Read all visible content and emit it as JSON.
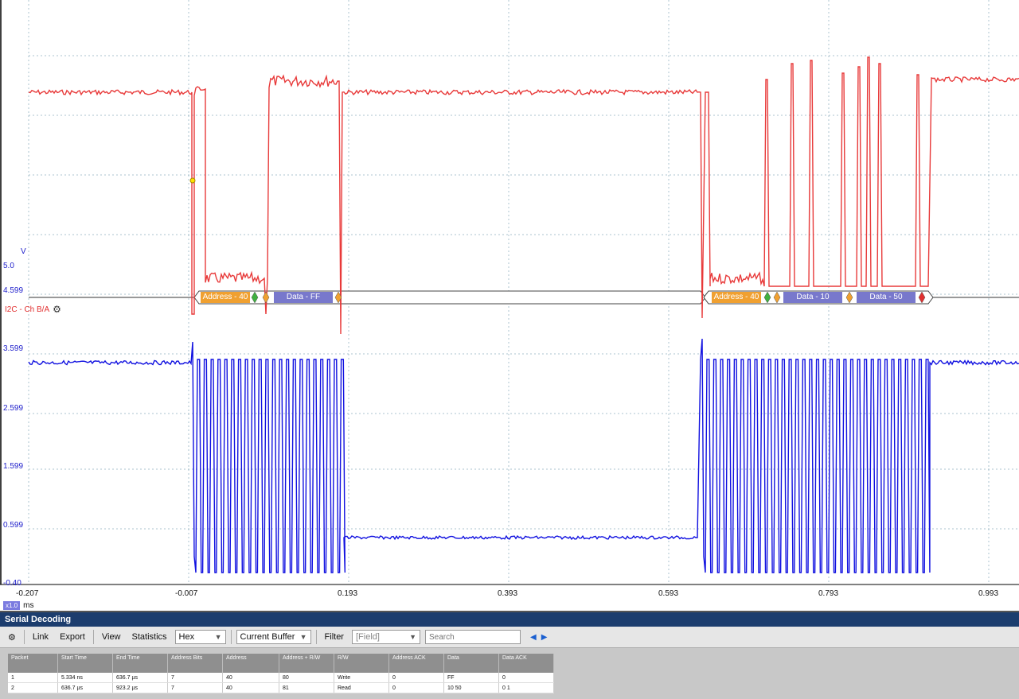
{
  "scope": {
    "y_ticks": [
      "5.0",
      "4.599",
      "3.599",
      "2.599",
      "1.599",
      "0.599",
      "-0.40"
    ],
    "v_label": "V",
    "x_ticks": [
      "-0.207",
      "-0.007",
      "0.193",
      "0.393",
      "0.593",
      "0.793",
      "0.993"
    ],
    "x_unit": "ms",
    "zoom": "x1.0",
    "channel_label": "I2C - Ch B/A",
    "colors": {
      "sda": "#e83a3a",
      "scl": "#1010e0",
      "address": "#f0a030",
      "data": "#7878cc"
    },
    "decodes": [
      {
        "label": "Address - 40",
        "kind": "address"
      },
      {
        "label": "Data - FF",
        "kind": "data"
      },
      {
        "label": "Address - 40",
        "kind": "address"
      },
      {
        "label": "Data - 10",
        "kind": "data"
      },
      {
        "label": "Data - 50",
        "kind": "data"
      }
    ]
  },
  "panel": {
    "title": "Serial Decoding",
    "toolbar": {
      "link": "Link",
      "export": "Export",
      "view": "View",
      "statistics": "Statistics",
      "format": "Hex",
      "buffer": "Current Buffer",
      "filter": "Filter",
      "field": "[Field]",
      "search_placeholder": "Search"
    },
    "columns": [
      "Packet",
      "Start Time",
      "End Time",
      "Address Bits",
      "Address",
      "Address + R/W",
      "R/W",
      "Address ACK",
      "Data",
      "Data ACK"
    ],
    "rows": [
      [
        "1",
        "5.334 ns",
        "636.7 µs",
        "7",
        "40",
        "80",
        "Write",
        "0",
        "FF",
        "0"
      ],
      [
        "2",
        "636.7 µs",
        "923.2 µs",
        "7",
        "40",
        "81",
        "Read",
        "0",
        "10 50",
        "0 1"
      ]
    ]
  }
}
